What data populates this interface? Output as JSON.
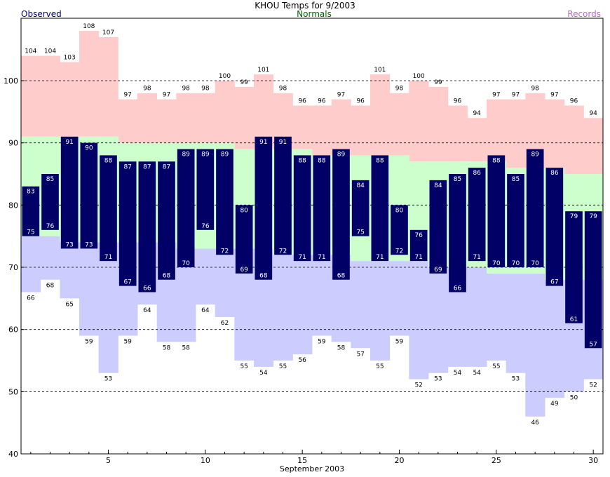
{
  "title": "KHOU Temps for 9/2003",
  "legend": {
    "observed": "Observed",
    "normals": "Normals",
    "records": "Records"
  },
  "colors": {
    "observed_bar": "#000066",
    "normals_fill": "#ccffcc",
    "record_high_fill": "#ffcccc",
    "record_low_fill": "#ccccff",
    "observed_text": "#000080",
    "normals_text": "#006600",
    "records_text": "#bb66cc"
  },
  "chart_data": {
    "type": "bar",
    "title": "KHOU Temps for 9/2003",
    "xlabel": "September 2003",
    "ylabel": "",
    "ylim": [
      40,
      110
    ],
    "xlim": [
      1,
      30
    ],
    "yticks": [
      40,
      50,
      60,
      70,
      80,
      90,
      100
    ],
    "xticks": [
      5,
      10,
      15,
      20,
      25,
      30
    ],
    "grid": true,
    "days": [
      1,
      2,
      3,
      4,
      5,
      6,
      7,
      8,
      9,
      10,
      11,
      12,
      13,
      14,
      15,
      16,
      17,
      18,
      19,
      20,
      21,
      22,
      23,
      24,
      25,
      26,
      27,
      28,
      29,
      30
    ],
    "series": [
      {
        "name": "Observed",
        "key": "obs_high",
        "values": [
          83,
          85,
          91,
          90,
          88,
          87,
          87,
          87,
          89,
          89,
          89,
          80,
          91,
          91,
          88,
          88,
          89,
          84,
          88,
          80,
          76,
          84,
          85,
          86,
          88,
          85,
          89,
          86,
          79,
          79
        ]
      },
      {
        "name": "Observed",
        "key": "obs_low",
        "values": [
          75,
          76,
          73,
          73,
          71,
          67,
          66,
          68,
          70,
          76,
          72,
          69,
          68,
          72,
          71,
          71,
          68,
          75,
          71,
          72,
          71,
          69,
          66,
          71,
          70,
          70,
          70,
          67,
          61,
          57
        ]
      },
      {
        "name": "Records",
        "key": "record_high",
        "values": [
          104,
          104,
          103,
          108,
          107,
          97,
          98,
          97,
          98,
          98,
          100,
          99,
          101,
          98,
          96,
          96,
          97,
          96,
          101,
          98,
          100,
          99,
          96,
          94,
          97,
          97,
          98,
          97,
          96,
          94
        ]
      },
      {
        "name": "Records",
        "key": "record_low",
        "values": [
          66,
          68,
          65,
          59,
          53,
          59,
          64,
          58,
          58,
          64,
          62,
          55,
          54,
          55,
          56,
          59,
          58,
          57,
          55,
          59,
          52,
          53,
          54,
          54,
          55,
          53,
          46,
          49,
          50,
          52
        ]
      },
      {
        "name": "Normals",
        "key": "normal_high",
        "values": [
          91,
          91,
          91,
          91,
          91,
          90,
          90,
          90,
          90,
          90,
          90,
          89,
          89,
          89,
          89,
          88,
          88,
          88,
          88,
          88,
          87,
          87,
          87,
          87,
          87,
          86,
          86,
          86,
          85,
          85
        ]
      },
      {
        "name": "Normals",
        "key": "normal_low",
        "values": [
          75,
          75,
          74,
          74,
          74,
          74,
          74,
          74,
          73,
          73,
          73,
          73,
          73,
          72,
          72,
          72,
          72,
          71,
          71,
          71,
          71,
          70,
          70,
          70,
          69,
          69,
          69,
          68,
          68,
          68
        ]
      }
    ]
  }
}
